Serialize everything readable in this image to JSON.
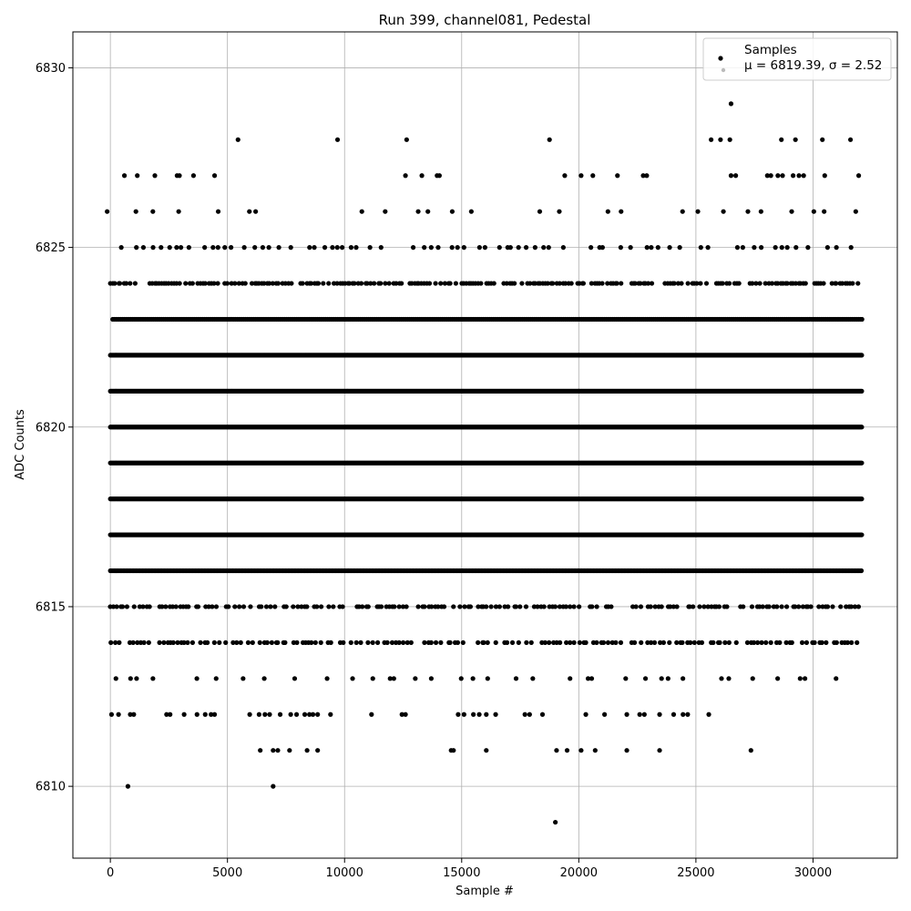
{
  "chart_data": {
    "type": "scatter",
    "title": "Run 399, channel081, Pedestal",
    "xlabel": "Sample #",
    "ylabel": "ADC Counts",
    "xlim": [
      -1600,
      33600
    ],
    "ylim": [
      6808,
      6831
    ],
    "xticks": [
      0,
      5000,
      10000,
      15000,
      20000,
      25000,
      30000
    ],
    "yticks": [
      6810,
      6815,
      6820,
      6825,
      6830
    ],
    "grid": true,
    "legend_position": "top-right",
    "series": [
      {
        "name": "Samples",
        "color": "#000000",
        "band_levels": [
          {
            "y": 6826,
            "x_start": 200,
            "x_end": 32100,
            "step": 900
          },
          {
            "y": 6825,
            "x_start": 400,
            "x_end": 32100,
            "step": 300
          },
          {
            "y": 6824,
            "x_start": 0,
            "x_end": 32100,
            "step": 110
          },
          {
            "y": 6823,
            "x_start": 100,
            "x_end": 32100,
            "step": 70
          },
          {
            "y": 6822,
            "x_start": 0,
            "x_end": 32100,
            "step": 40
          },
          {
            "y": 6821,
            "x_start": 0,
            "x_end": 32100,
            "step": 40
          },
          {
            "y": 6820,
            "x_start": 0,
            "x_end": 32100,
            "step": 40
          },
          {
            "y": 6819,
            "x_start": 0,
            "x_end": 32100,
            "step": 40
          },
          {
            "y": 6818,
            "x_start": 0,
            "x_end": 32100,
            "step": 40
          },
          {
            "y": 6817,
            "x_start": 0,
            "x_end": 32100,
            "step": 40
          },
          {
            "y": 6816,
            "x_start": 0,
            "x_end": 32100,
            "step": 55
          },
          {
            "y": 6815,
            "x_start": 0,
            "x_end": 32000,
            "step": 140
          },
          {
            "y": 6814,
            "x_start": 0,
            "x_end": 32000,
            "step": 160
          },
          {
            "y": 6813,
            "x_start": 0,
            "x_end": 31300,
            "step": 650
          }
        ],
        "points": [
          {
            "x": 600,
            "y": 6827
          },
          {
            "x": 1150,
            "y": 6827
          },
          {
            "x": 1900,
            "y": 6827
          },
          {
            "x": 2850,
            "y": 6827
          },
          {
            "x": 2950,
            "y": 6827
          },
          {
            "x": 3550,
            "y": 6827
          },
          {
            "x": 4450,
            "y": 6827
          },
          {
            "x": 5450,
            "y": 6828
          },
          {
            "x": 9700,
            "y": 6828
          },
          {
            "x": 12650,
            "y": 6828
          },
          {
            "x": 12600,
            "y": 6827
          },
          {
            "x": 13300,
            "y": 6827
          },
          {
            "x": 13950,
            "y": 6827
          },
          {
            "x": 14050,
            "y": 6827
          },
          {
            "x": 18750,
            "y": 6828
          },
          {
            "x": 19400,
            "y": 6827
          },
          {
            "x": 20100,
            "y": 6827
          },
          {
            "x": 20600,
            "y": 6827
          },
          {
            "x": 21650,
            "y": 6827
          },
          {
            "x": 22750,
            "y": 6827
          },
          {
            "x": 22900,
            "y": 6827
          },
          {
            "x": 25650,
            "y": 6828
          },
          {
            "x": 26050,
            "y": 6828
          },
          {
            "x": 26450,
            "y": 6828
          },
          {
            "x": 26500,
            "y": 6829
          },
          {
            "x": 26500,
            "y": 6827
          },
          {
            "x": 26700,
            "y": 6827
          },
          {
            "x": 28050,
            "y": 6827
          },
          {
            "x": 28200,
            "y": 6827
          },
          {
            "x": 28500,
            "y": 6827
          },
          {
            "x": 28650,
            "y": 6828
          },
          {
            "x": 28700,
            "y": 6827
          },
          {
            "x": 29150,
            "y": 6827
          },
          {
            "x": 29250,
            "y": 6828
          },
          {
            "x": 29400,
            "y": 6827
          },
          {
            "x": 29600,
            "y": 6827
          },
          {
            "x": 30400,
            "y": 6828
          },
          {
            "x": 30500,
            "y": 6827
          },
          {
            "x": 31600,
            "y": 6828
          },
          {
            "x": 31950,
            "y": 6827
          },
          {
            "x": 50,
            "y": 6812
          },
          {
            "x": 350,
            "y": 6812
          },
          {
            "x": 850,
            "y": 6812
          },
          {
            "x": 1000,
            "y": 6812
          },
          {
            "x": 2400,
            "y": 6812
          },
          {
            "x": 2550,
            "y": 6812
          },
          {
            "x": 3150,
            "y": 6812
          },
          {
            "x": 3700,
            "y": 6812
          },
          {
            "x": 4050,
            "y": 6812
          },
          {
            "x": 4300,
            "y": 6812
          },
          {
            "x": 4450,
            "y": 6812
          },
          {
            "x": 5950,
            "y": 6812
          },
          {
            "x": 6350,
            "y": 6812
          },
          {
            "x": 6600,
            "y": 6812
          },
          {
            "x": 6800,
            "y": 6812
          },
          {
            "x": 7250,
            "y": 6812
          },
          {
            "x": 7700,
            "y": 6812
          },
          {
            "x": 7950,
            "y": 6812
          },
          {
            "x": 8300,
            "y": 6812
          },
          {
            "x": 8500,
            "y": 6812
          },
          {
            "x": 8650,
            "y": 6812
          },
          {
            "x": 8850,
            "y": 6812
          },
          {
            "x": 9400,
            "y": 6812
          },
          {
            "x": 11150,
            "y": 6812
          },
          {
            "x": 12450,
            "y": 6812
          },
          {
            "x": 12600,
            "y": 6812
          },
          {
            "x": 14850,
            "y": 6812
          },
          {
            "x": 15100,
            "y": 6812
          },
          {
            "x": 15500,
            "y": 6812
          },
          {
            "x": 15750,
            "y": 6812
          },
          {
            "x": 16050,
            "y": 6812
          },
          {
            "x": 16450,
            "y": 6812
          },
          {
            "x": 17700,
            "y": 6812
          },
          {
            "x": 17900,
            "y": 6812
          },
          {
            "x": 18450,
            "y": 6812
          },
          {
            "x": 20300,
            "y": 6812
          },
          {
            "x": 21100,
            "y": 6812
          },
          {
            "x": 22050,
            "y": 6812
          },
          {
            "x": 22600,
            "y": 6812
          },
          {
            "x": 22800,
            "y": 6812
          },
          {
            "x": 23450,
            "y": 6812
          },
          {
            "x": 24050,
            "y": 6812
          },
          {
            "x": 24450,
            "y": 6812
          },
          {
            "x": 24650,
            "y": 6812
          },
          {
            "x": 25550,
            "y": 6812
          },
          {
            "x": 6400,
            "y": 6811
          },
          {
            "x": 6950,
            "y": 6811
          },
          {
            "x": 7150,
            "y": 6811
          },
          {
            "x": 7650,
            "y": 6811
          },
          {
            "x": 8400,
            "y": 6811
          },
          {
            "x": 8850,
            "y": 6811
          },
          {
            "x": 14550,
            "y": 6811
          },
          {
            "x": 14650,
            "y": 6811
          },
          {
            "x": 16050,
            "y": 6811
          },
          {
            "x": 19050,
            "y": 6811
          },
          {
            "x": 19500,
            "y": 6811
          },
          {
            "x": 20100,
            "y": 6811
          },
          {
            "x": 20700,
            "y": 6811
          },
          {
            "x": 22050,
            "y": 6811
          },
          {
            "x": 23450,
            "y": 6811
          },
          {
            "x": 27350,
            "y": 6811
          },
          {
            "x": 750,
            "y": 6810
          },
          {
            "x": 6950,
            "y": 6810
          },
          {
            "x": 19000,
            "y": 6809
          }
        ]
      }
    ],
    "legend": {
      "entries": [
        "Samples",
        "μ = 6819.39, σ = 2.52"
      ]
    }
  }
}
